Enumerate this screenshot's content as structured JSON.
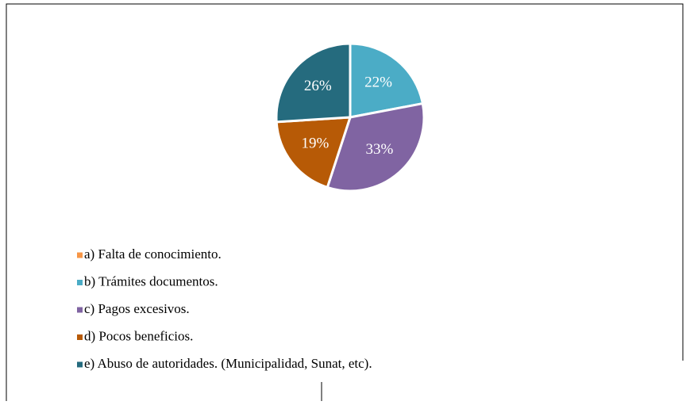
{
  "chart_data": {
    "type": "pie",
    "categories": [
      "a) Falta de conocimiento.",
      "b) Trámites documentos.",
      "c) Pagos excesivos.",
      "d) Pocos beneficios.",
      "e) Abuso de autoridades. (Municipalidad, Sunat, etc)."
    ],
    "values": [
      0,
      22,
      33,
      19,
      26
    ],
    "value_labels": [
      null,
      "22%",
      "33%",
      "19%",
      "26%"
    ],
    "colors": [
      "#f79646",
      "#4bacc6",
      "#8064a2",
      "#b75a06",
      "#256b7e"
    ],
    "legend": "bottom-left"
  }
}
